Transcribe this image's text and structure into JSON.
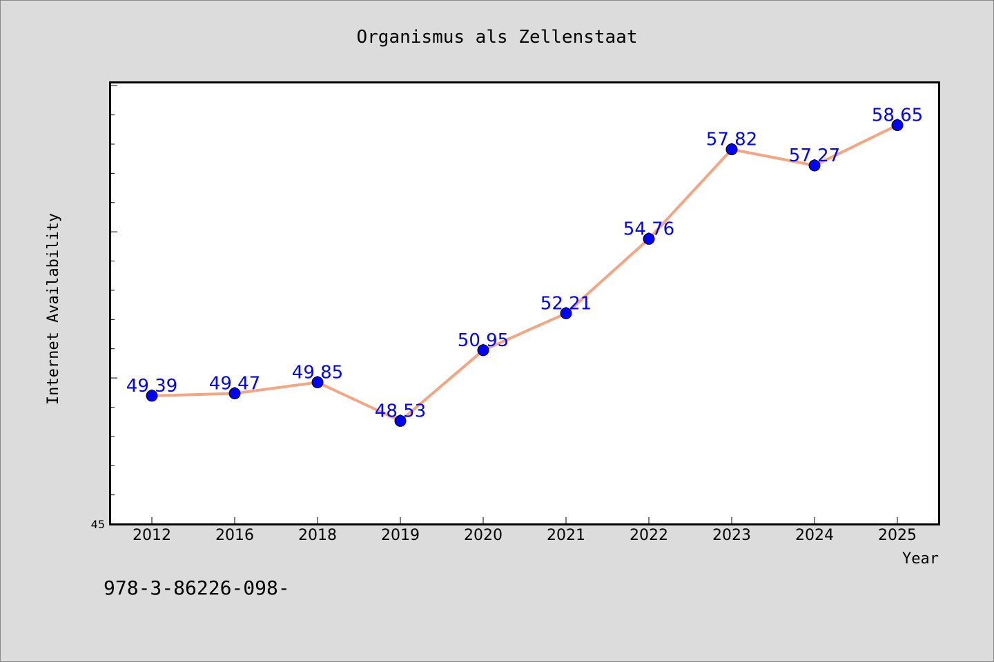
{
  "chart_data": {
    "type": "line",
    "title": "Organismus als Zellenstaat",
    "xlabel": "Year",
    "ylabel": "Internet Availability",
    "categories": [
      "2012",
      "2016",
      "2018",
      "2019",
      "2020",
      "2021",
      "2022",
      "2023",
      "2024",
      "2025"
    ],
    "series": [
      {
        "values": [
          49.39,
          49.47,
          49.85,
          48.53,
          50.95,
          52.21,
          54.76,
          57.82,
          57.27,
          58.65
        ]
      }
    ],
    "data_labels": [
      "49.39",
      "49.47",
      "49.85",
      "48.53",
      "50.95",
      "52.21",
      "54.76",
      "57.82",
      "57.27",
      "58.65"
    ],
    "ylim": [
      45,
      60.1
    ],
    "ytick_labels": [
      "45"
    ],
    "grid": false,
    "legend": "none",
    "line_color": "#f4a582",
    "marker_color": "#0000ff",
    "label_color": "#0000ff"
  },
  "footer_text": "978-3-86226-098-"
}
